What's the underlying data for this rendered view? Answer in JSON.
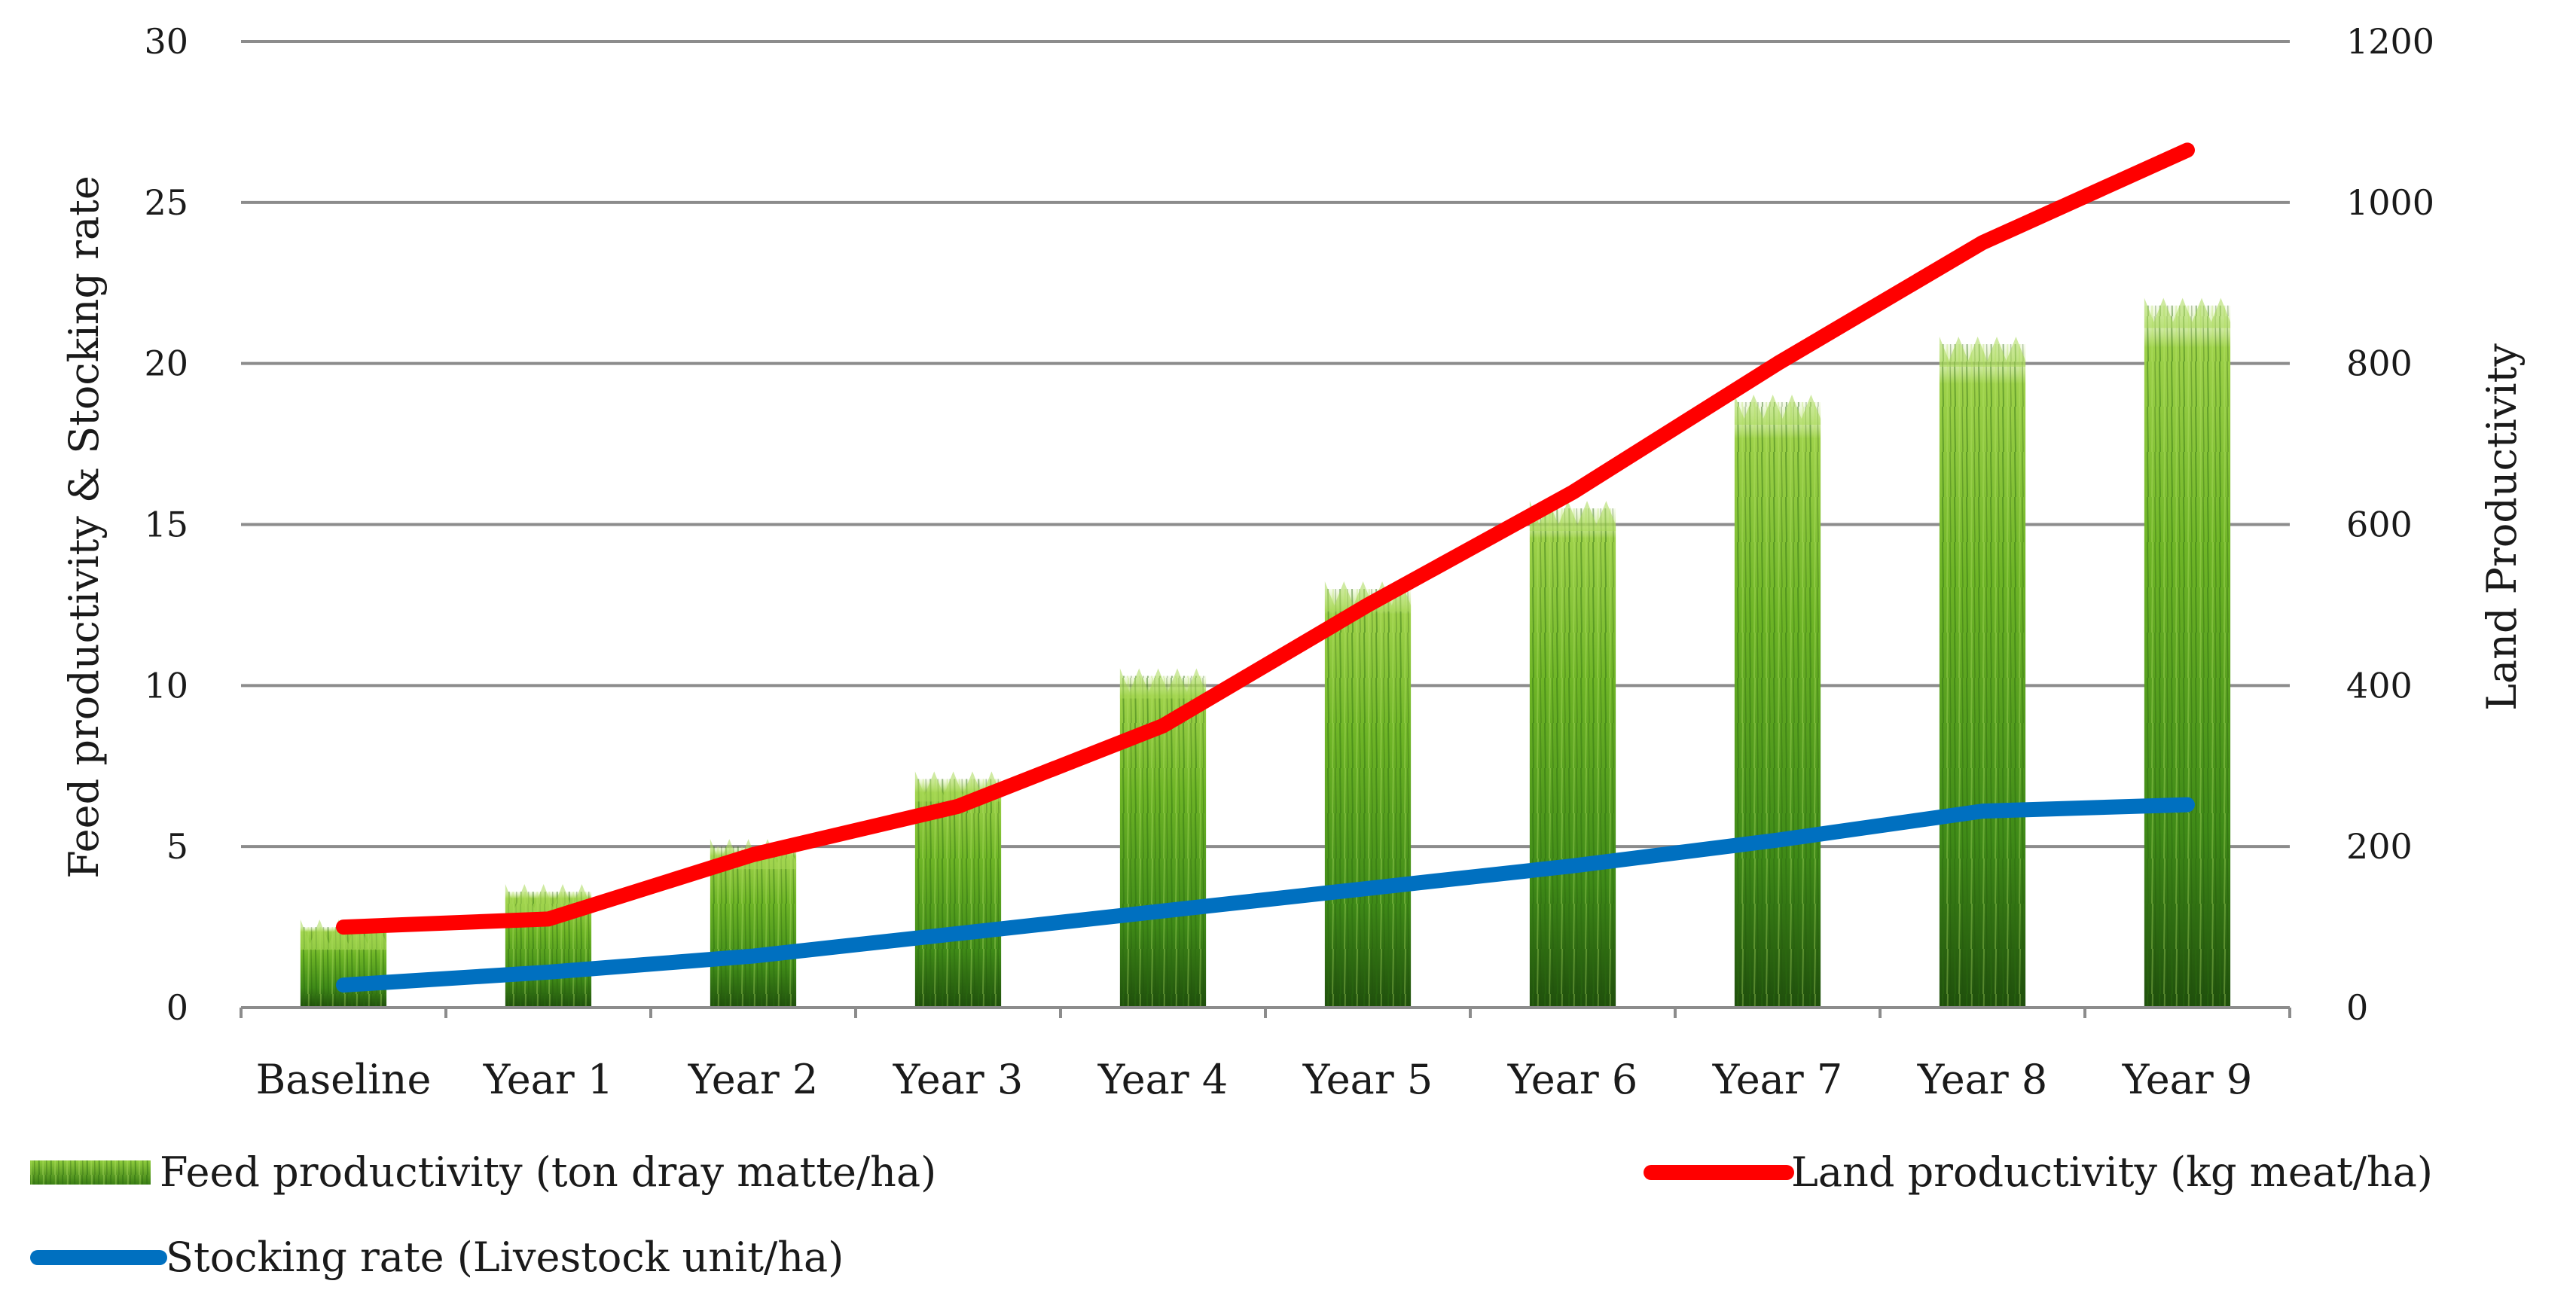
{
  "chart_data": {
    "type": "bar",
    "categories": [
      "Baseline",
      "Year 1",
      "Year 2",
      "Year 3",
      "Year 4",
      "Year 5",
      "Year 6",
      "Year 7",
      "Year 8",
      "Year 9"
    ],
    "series": [
      {
        "name": "Feed productivity (ton dray matte/ha)",
        "type": "bar",
        "axis": "left",
        "values": [
          2.5,
          3.6,
          5.0,
          7.1,
          10.3,
          13.0,
          15.5,
          18.8,
          20.6,
          21.8
        ],
        "color": "#5a9e1c"
      },
      {
        "name": "Land productivity (kg meat/ha)",
        "type": "line",
        "axis": "right",
        "values": [
          100,
          110,
          190,
          250,
          350,
          500,
          640,
          800,
          950,
          1065
        ],
        "color": "#ff0000"
      },
      {
        "name": "Stocking rate (Livestock unit/ha)",
        "type": "line",
        "axis": "left",
        "values": [
          0.7,
          1.1,
          1.6,
          2.3,
          3.0,
          3.7,
          4.4,
          5.2,
          6.1,
          6.3
        ],
        "color": "#0070c0"
      }
    ],
    "y_left": {
      "label": "Feed productivity  & Stocking rate",
      "range": [
        0,
        30
      ],
      "ticks": [
        "0",
        "5",
        "10",
        "15",
        "20",
        "25",
        "30"
      ]
    },
    "y_right": {
      "label": "Land Productivity",
      "range": [
        0,
        1200
      ],
      "ticks": [
        "0",
        "200",
        "400",
        "600",
        "800",
        "1000",
        "1200"
      ]
    },
    "grid": true,
    "legend_position": "bottom"
  }
}
